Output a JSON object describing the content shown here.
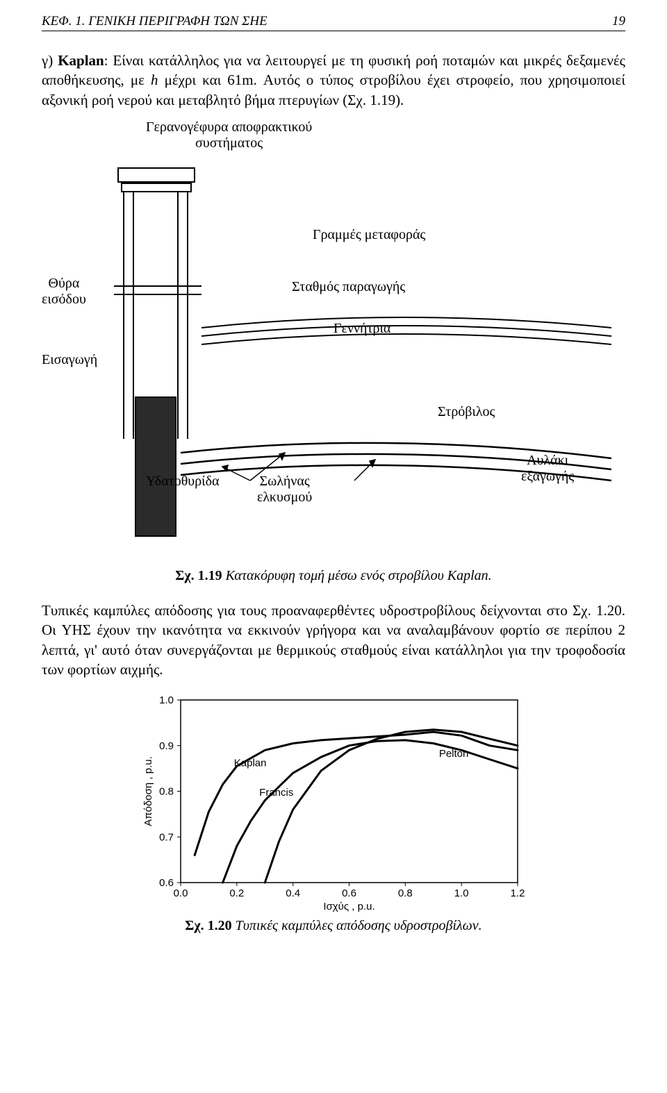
{
  "header": {
    "left": "ΚΕΦ. 1.  ΓΕΝΙΚΗ ΠΕΡΙΓΡΑΦΗ ΤΩΝ ΣΗΕ",
    "page_number": "19"
  },
  "para1_lead": "γ) ",
  "para1_bold": "Kaplan",
  "para1_rest_a": ": Είναι κατάλληλος για να λειτουργεί με τη φυσική ροή ποταμών και μικρές δεξαμενές αποθήκευσης, με ",
  "para1_italic": "h",
  "para1_rest_b": " μέχρι και 61m. Αυτός ο τύπος στροβίλου έχει στροφείο, που χρησιμοποιεί αξονική ροή νερού και μεταβλητό βήμα πτερυγίων (Σχ. 1.19).",
  "fig119": {
    "labels": {
      "crane_l1": "Γερανογέφυρα αποφρακτικού",
      "crane_l2": "συστήματος",
      "transmission": "Γραμμές μεταφοράς",
      "intake_gate_l1": "Θύρα",
      "intake_gate_l2": "εισόδου",
      "powerhouse": "Σταθμός παραγωγής",
      "generator": "Γεννήτρια",
      "intake": "Εισαγωγή",
      "turbine": "Στρόβιλος",
      "wicket": "Υδατοθυρίδα",
      "draft_l1": "Σωλήνας",
      "draft_l2": "ελκυσμού",
      "tailrace_l1": "Αυλάκι",
      "tailrace_l2": "εξαγωγής"
    },
    "colors": {
      "stroke": "#000000",
      "fill_dark": "#2b2b2b",
      "fill_mid": "#8a8a8a",
      "bg": "#ffffff"
    }
  },
  "caption119_bold": "Σχ. 1.19",
  "caption119_italic": " Κατακόρυφη τομή μέσω ενός στροβίλου Kaplan.",
  "para2": "Τυπικές καμπύλες απόδοσης για τους προαναφερθέντες υδροστροβίλους δείχνονται στο Σχ. 1.20. Οι ΥΗΣ έχουν την ικανότητα να εκκινούν γρήγορα και να αναλαμβάνουν φορτίο σε περίπου 2 λεπτά, γι' αυτό όταν συνεργάζονται με θερμικούς σταθμούς είναι κατάλληλοι για την τροφοδοσία των φορτίων αιχμής.",
  "fig120": {
    "type": "line",
    "xlabel": "Ισχύς , p.u.",
    "ylabel": "Απόδοση , p.u.",
    "xlim": [
      0.0,
      1.2
    ],
    "ylim": [
      0.6,
      1.0
    ],
    "xticks": [
      0.0,
      0.2,
      0.4,
      0.6,
      0.8,
      1.0,
      1.2
    ],
    "yticks": [
      0.6,
      0.7,
      0.8,
      0.9,
      1.0
    ],
    "tick_fontsize": 15,
    "label_fontsize": 15,
    "line_width": 3,
    "axis_width": 1.5,
    "axis_color": "#000000",
    "line_color": "#000000",
    "bg": "#ffffff",
    "series": [
      {
        "name": "Kaplan",
        "label_xy": [
          0.19,
          0.855
        ],
        "points": [
          [
            0.05,
            0.66
          ],
          [
            0.1,
            0.755
          ],
          [
            0.15,
            0.815
          ],
          [
            0.2,
            0.855
          ],
          [
            0.3,
            0.89
          ],
          [
            0.4,
            0.905
          ],
          [
            0.5,
            0.912
          ],
          [
            0.6,
            0.916
          ],
          [
            0.7,
            0.92
          ],
          [
            0.8,
            0.924
          ],
          [
            0.9,
            0.93
          ],
          [
            1.0,
            0.922
          ],
          [
            1.1,
            0.9
          ],
          [
            1.2,
            0.89
          ]
        ]
      },
      {
        "name": "Francis",
        "label_xy": [
          0.28,
          0.79
        ],
        "points": [
          [
            0.15,
            0.6
          ],
          [
            0.2,
            0.68
          ],
          [
            0.25,
            0.735
          ],
          [
            0.3,
            0.78
          ],
          [
            0.4,
            0.84
          ],
          [
            0.5,
            0.875
          ],
          [
            0.6,
            0.9
          ],
          [
            0.7,
            0.91
          ],
          [
            0.8,
            0.912
          ],
          [
            0.9,
            0.905
          ],
          [
            1.0,
            0.89
          ],
          [
            1.1,
            0.87
          ],
          [
            1.2,
            0.85
          ]
        ]
      },
      {
        "name": "Pelton",
        "label_xy": [
          0.92,
          0.875
        ],
        "points": [
          [
            0.3,
            0.6
          ],
          [
            0.35,
            0.69
          ],
          [
            0.4,
            0.76
          ],
          [
            0.5,
            0.845
          ],
          [
            0.6,
            0.89
          ],
          [
            0.7,
            0.915
          ],
          [
            0.8,
            0.93
          ],
          [
            0.9,
            0.935
          ],
          [
            1.0,
            0.93
          ],
          [
            1.1,
            0.915
          ],
          [
            1.2,
            0.9
          ]
        ]
      }
    ]
  },
  "caption120_bold": "Σχ. 1.20",
  "caption120_italic": "  Τυπικές καμπύλες απόδοσης υδροστροβίλων."
}
